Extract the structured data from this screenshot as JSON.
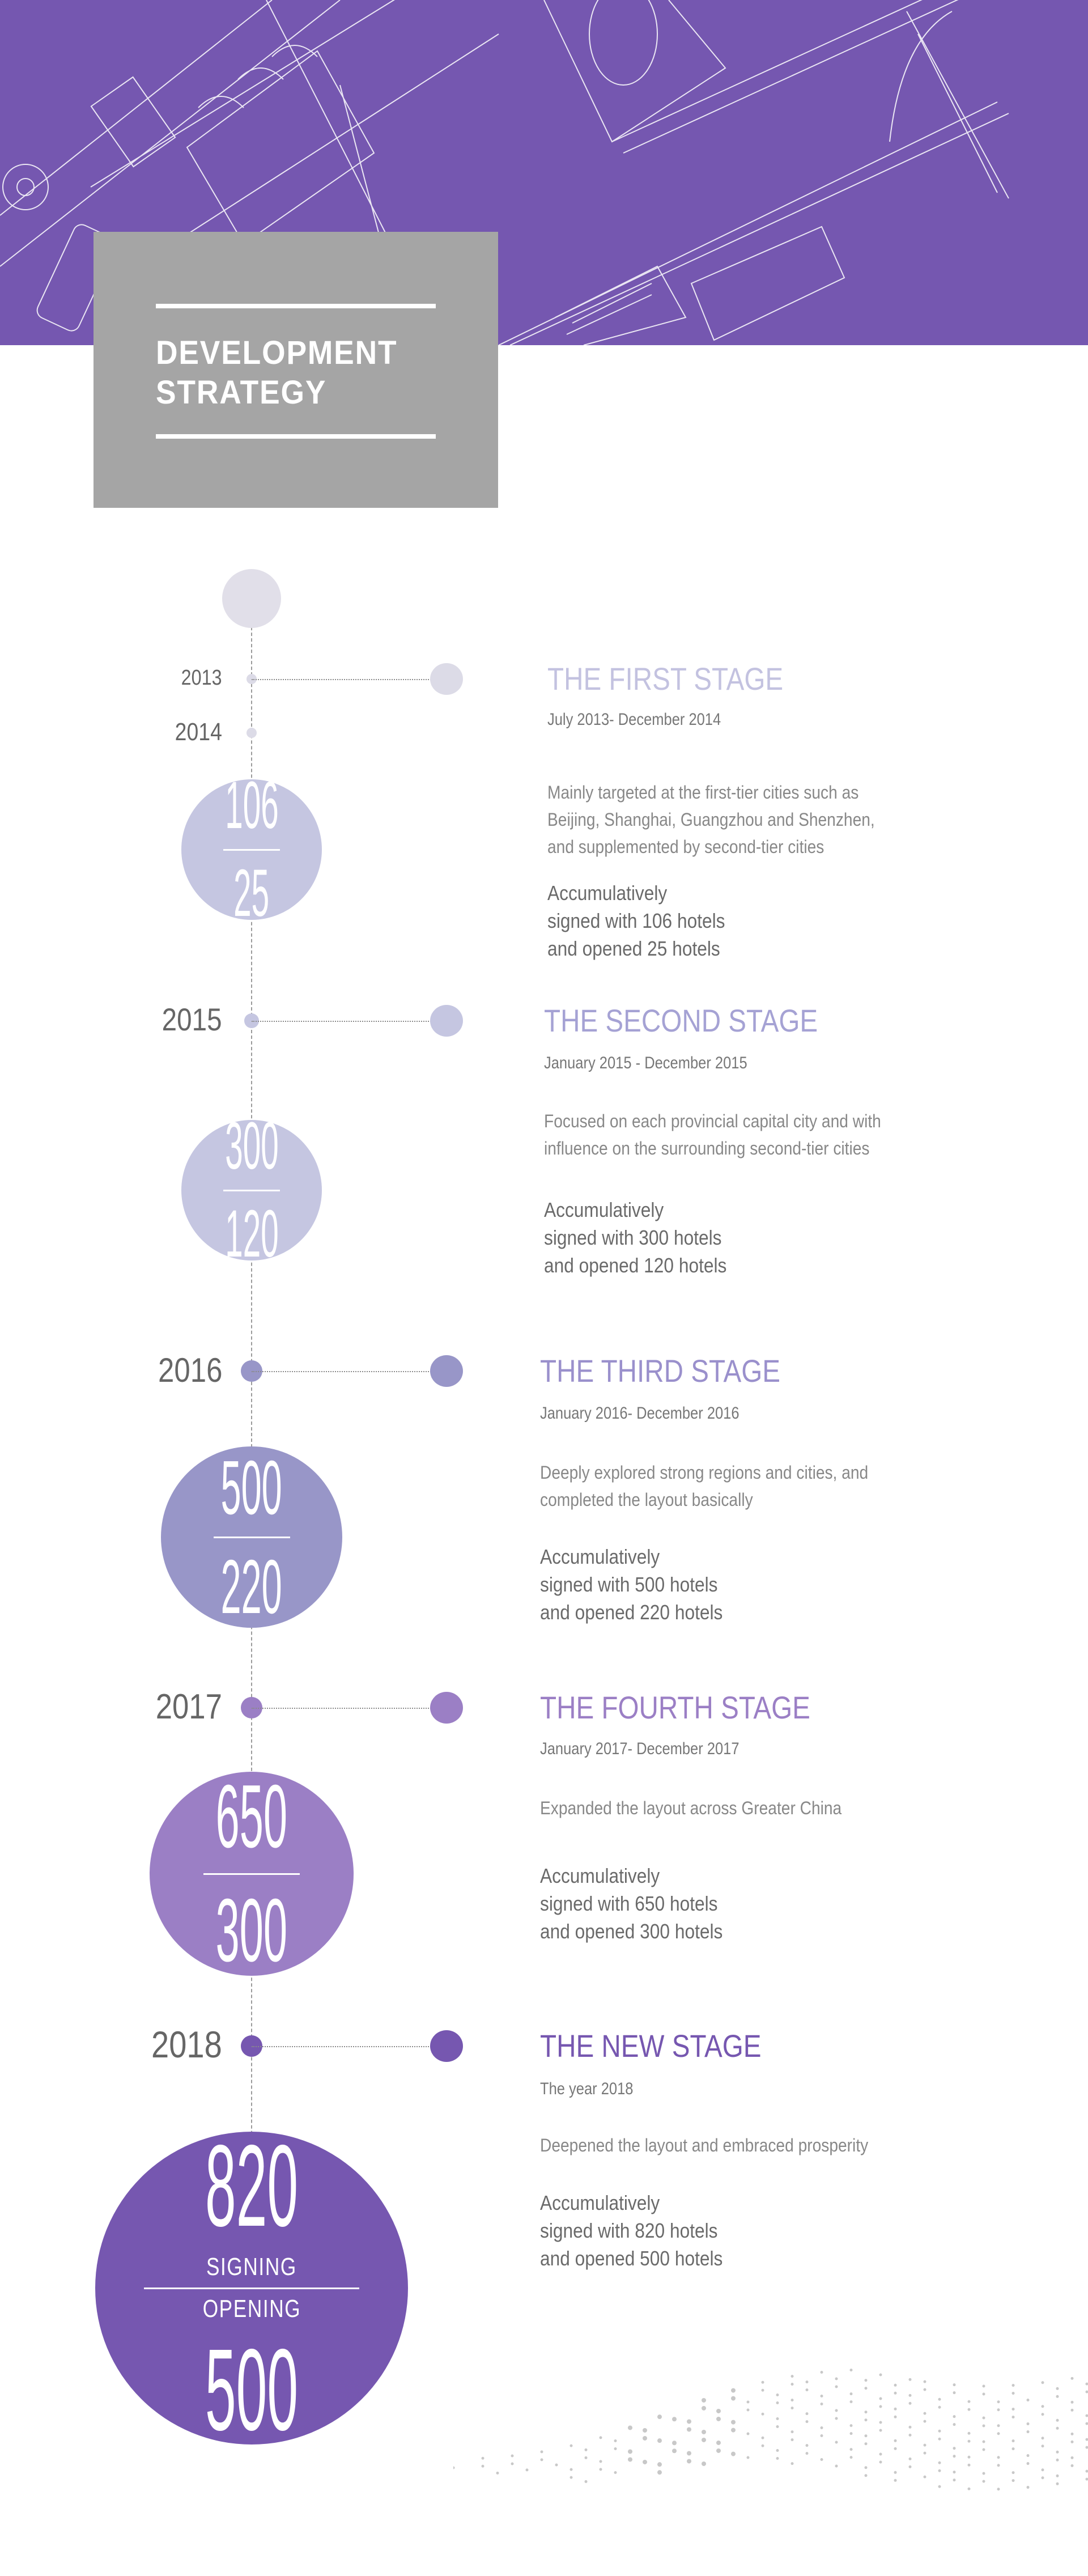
{
  "page": {
    "title_line1": "DEVELOPMENT",
    "title_line2": "STRATEGY"
  },
  "colors": {
    "header_purple": "#7557b0",
    "title_box_gray": "#a5a5a5"
  },
  "stages": [
    {
      "years": [
        "2013",
        "2014"
      ],
      "title": "THE FIRST STAGE",
      "period": "July 2013- December 2014",
      "description": [
        "Mainly targeted at the first-tier cities such as",
        "Beijing, Shanghai, Guangzhou and Shenzhen,",
        "and supplemented by second-tier cities"
      ],
      "summary": [
        "Accumulatively",
        "signed with 106 hotels",
        "and opened 25 hotels"
      ],
      "signed": "106",
      "opened": "25",
      "color": "#c5c6e1",
      "title_color": "#c3c2e0",
      "dot_color": "#dcdbe7"
    },
    {
      "years": [
        "2015"
      ],
      "title": "THE SECOND STAGE",
      "period": "January 2015 - December 2015",
      "description": [
        "Focused on each provincial capital city and with",
        "influence on the surrounding second-tier cities"
      ],
      "summary": [
        "Accumulatively",
        "signed with 300 hotels",
        "and opened 120 hotels"
      ],
      "signed": "300",
      "opened": "120",
      "color": "#c5c6e1",
      "title_color": "#a5a2d4",
      "dot_color": "#c5c6e1"
    },
    {
      "years": [
        "2016"
      ],
      "title": "THE THIRD STAGE",
      "period": "January 2016- December 2016",
      "description": [
        "Deeply explored strong regions and cities, and",
        "completed the layout basically"
      ],
      "summary": [
        "Accumulatively",
        "signed with 500 hotels",
        "and opened 220 hotels"
      ],
      "signed": "500",
      "opened": "220",
      "color": "#9896c8",
      "title_color": "#9a90cc",
      "dot_color": "#9896c8"
    },
    {
      "years": [
        "2017"
      ],
      "title": "THE FOURTH STAGE",
      "period": "January 2017- December 2017",
      "description": [
        "Expanded the layout across Greater China"
      ],
      "summary": [
        "Accumulatively",
        "signed with 650 hotels",
        "and opened 300 hotels"
      ],
      "signed": "650",
      "opened": "300",
      "color": "#9b7fc5",
      "title_color": "#9b7fc5",
      "dot_color": "#9b7fc5"
    },
    {
      "years": [
        "2018"
      ],
      "title": "THE NEW STAGE",
      "period": "The year 2018",
      "description": [
        "Deepened the layout and embraced prosperity"
      ],
      "summary": [
        "Accumulatively",
        "signed with 820 hotels",
        "and opened 500 hotels"
      ],
      "signed": "820",
      "opened": "500",
      "signed_label": "SIGNING",
      "opened_label": "OPENING",
      "color": "#7657b0",
      "title_color": "#7657b0",
      "dot_color": "#7657b0"
    }
  ]
}
